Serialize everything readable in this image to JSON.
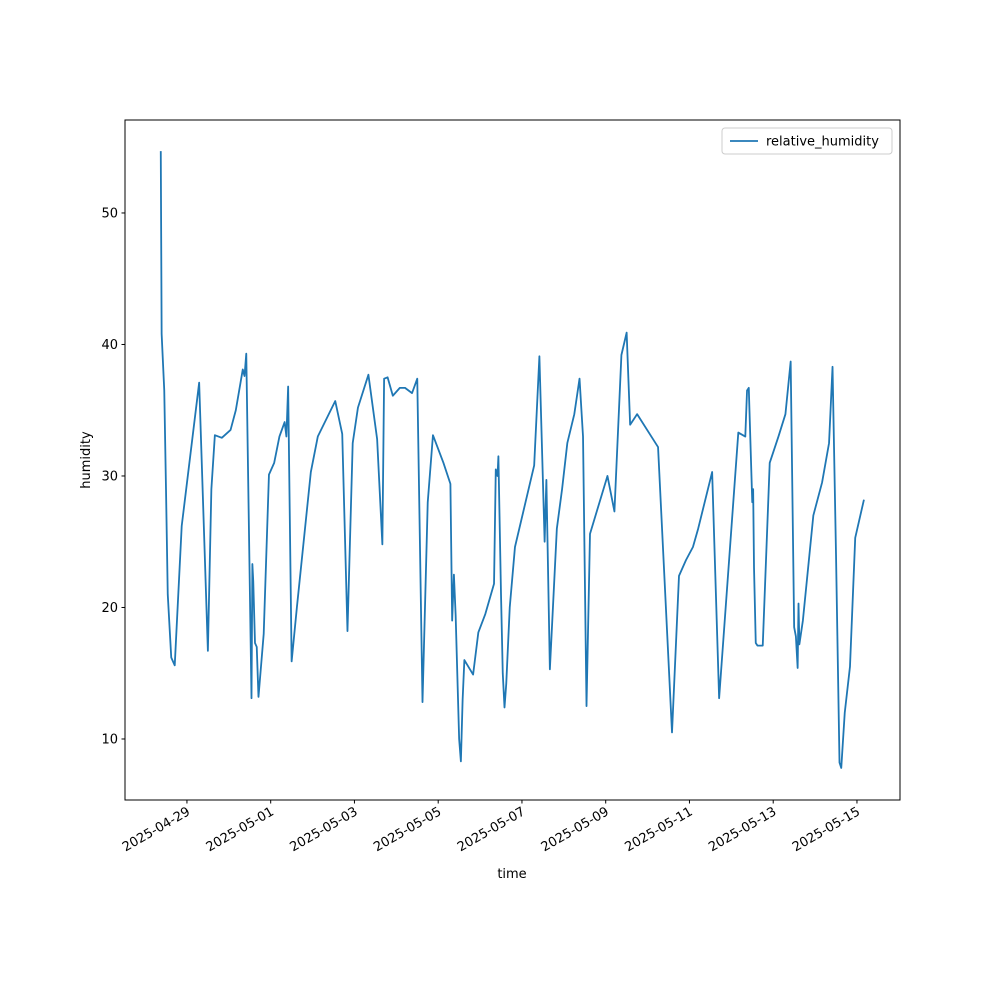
{
  "chart_data": {
    "type": "line",
    "x_label": "time",
    "y_label": "humidity",
    "x": [
      "2025-04-28T09:00",
      "2025-04-28T09:30",
      "2025-04-28T11:00",
      "2025-04-28T12:00",
      "2025-04-28T13:00",
      "2025-04-28T15:00",
      "2025-04-28T17:00",
      "2025-04-28T21:00",
      "2025-04-29T07:00",
      "2025-04-29T12:00",
      "2025-04-29T14:00",
      "2025-04-29T16:00",
      "2025-04-29T20:00",
      "2025-04-30T01:00",
      "2025-04-30T04:00",
      "2025-04-30T08:00",
      "2025-04-30T09:00",
      "2025-04-30T10:00",
      "2025-04-30T13:00",
      "2025-04-30T13:30",
      "2025-04-30T14:00",
      "2025-04-30T15:00",
      "2025-04-30T16:00",
      "2025-04-30T17:00",
      "2025-04-30T20:00",
      "2025-04-30T23:00",
      "2025-05-01T02:00",
      "2025-05-01T05:00",
      "2025-05-01T08:00",
      "2025-05-01T09:00",
      "2025-05-01T10:00",
      "2025-05-01T12:00",
      "2025-05-01T15:00",
      "2025-05-01T23:00",
      "2025-05-02T03:00",
      "2025-05-02T13:00",
      "2025-05-02T17:00",
      "2025-05-02T20:00",
      "2025-05-02T23:00",
      "2025-05-03T02:00",
      "2025-05-03T08:00",
      "2025-05-03T13:00",
      "2025-05-03T16:00",
      "2025-05-03T17:00",
      "2025-05-03T19:00",
      "2025-05-03T22:00",
      "2025-05-04T02:00",
      "2025-05-04T05:00",
      "2025-05-04T09:00",
      "2025-05-04T12:00",
      "2025-05-04T15:00",
      "2025-05-04T18:00",
      "2025-05-04T21:00",
      "2025-05-05T03:00",
      "2025-05-05T07:00",
      "2025-05-05T08:00",
      "2025-05-05T09:00",
      "2025-05-05T10:00",
      "2025-05-05T12:00",
      "2025-05-05T13:00",
      "2025-05-05T14:00",
      "2025-05-05T15:00",
      "2025-05-05T20:00",
      "2025-05-05T23:00",
      "2025-05-06T03:00",
      "2025-05-06T08:00",
      "2025-05-06T09:00",
      "2025-05-06T10:00",
      "2025-05-06T10:30",
      "2025-05-06T12:00",
      "2025-05-06T13:00",
      "2025-05-06T14:00",
      "2025-05-06T15:00",
      "2025-05-06T17:00",
      "2025-05-06T20:00",
      "2025-05-07T07:00",
      "2025-05-07T10:00",
      "2025-05-07T13:00",
      "2025-05-07T14:00",
      "2025-05-07T16:00",
      "2025-05-07T20:00",
      "2025-05-07T23:00",
      "2025-05-08T02:00",
      "2025-05-08T06:00",
      "2025-05-08T09:00",
      "2025-05-08T11:00",
      "2025-05-08T13:00",
      "2025-05-08T15:00",
      "2025-05-09T01:00",
      "2025-05-09T05:00",
      "2025-05-09T09:00",
      "2025-05-09T12:00",
      "2025-05-09T14:00",
      "2025-05-09T18:00",
      "2025-05-10T06:00",
      "2025-05-10T14:00",
      "2025-05-10T18:00",
      "2025-05-10T22:00",
      "2025-05-11T02:00",
      "2025-05-11T05:00",
      "2025-05-11T13:00",
      "2025-05-11T17:00",
      "2025-05-12T04:00",
      "2025-05-12T08:00",
      "2025-05-12T09:00",
      "2025-05-12T10:00",
      "2025-05-12T12:00",
      "2025-05-12T12:30",
      "2025-05-12T13:00",
      "2025-05-12T14:00",
      "2025-05-12T15:00",
      "2025-05-12T18:00",
      "2025-05-12T22:00",
      "2025-05-13T03:00",
      "2025-05-13T07:00",
      "2025-05-13T10:00",
      "2025-05-13T12:00",
      "2025-05-13T13:00",
      "2025-05-13T14:00",
      "2025-05-13T14:30",
      "2025-05-13T15:00",
      "2025-05-13T17:00",
      "2025-05-13T23:00",
      "2025-05-14T04:00",
      "2025-05-14T08:00",
      "2025-05-14T10:00",
      "2025-05-14T12:00",
      "2025-05-14T14:00",
      "2025-05-14T15:00",
      "2025-05-14T17:00",
      "2025-05-14T20:00",
      "2025-05-14T23:00",
      "2025-05-15T04:00"
    ],
    "series": [
      {
        "name": "relative_humidity",
        "color": "#1f77b4",
        "values": [
          54.7,
          40.8,
          36.5,
          29,
          21,
          16.2,
          15.6,
          26.2,
          37.1,
          16.7,
          29,
          33.1,
          32.9,
          33.5,
          35,
          38.1,
          37.6,
          39.3,
          13.1,
          23.3,
          22,
          17.3,
          17,
          13.2,
          18,
          30.1,
          31,
          33,
          34.1,
          33,
          36.8,
          15.9,
          20,
          30.3,
          33,
          35.7,
          33.2,
          18.2,
          32.5,
          35.2,
          37.7,
          32.8,
          24.8,
          37.4,
          37.5,
          36.1,
          36.7,
          36.7,
          36.3,
          37.4,
          12.8,
          28,
          33.1,
          31,
          29.4,
          19,
          22.5,
          19.4,
          10,
          8.3,
          13,
          16,
          14.9,
          18.1,
          19.5,
          21.8,
          30.5,
          30,
          31.5,
          21,
          15,
          12.4,
          14.2,
          20,
          24.6,
          30.8,
          39.1,
          25,
          29.7,
          15.3,
          26,
          29,
          32.5,
          34.7,
          37.4,
          33,
          12.5,
          25.6,
          30,
          27.3,
          39.2,
          40.9,
          33.9,
          34.7,
          32.2,
          10.5,
          22.4,
          23.6,
          24.6,
          26,
          30.3,
          13.1,
          33.3,
          33,
          36.5,
          36.7,
          28,
          29,
          23,
          17.3,
          17.1,
          17.1,
          31,
          33,
          34.7,
          38.7,
          18.5,
          17.8,
          15.4,
          20.3,
          17.2,
          19,
          27,
          29.5,
          32.5,
          38.3,
          24,
          8.2,
          7.8,
          12,
          15.5,
          25.3,
          28.2
        ]
      }
    ],
    "xlim": [
      "2025-04-27T12:30",
      "2025-05-16T00:40"
    ],
    "xticks": [
      "2025-04-29",
      "2025-05-01",
      "2025-05-03",
      "2025-05-05",
      "2025-05-07",
      "2025-05-09",
      "2025-05-11",
      "2025-05-13",
      "2025-05-15"
    ],
    "ylim": [
      5.36,
      57.07
    ],
    "yticks": [
      10,
      20,
      30,
      40,
      50
    ],
    "legend": "upper right"
  }
}
